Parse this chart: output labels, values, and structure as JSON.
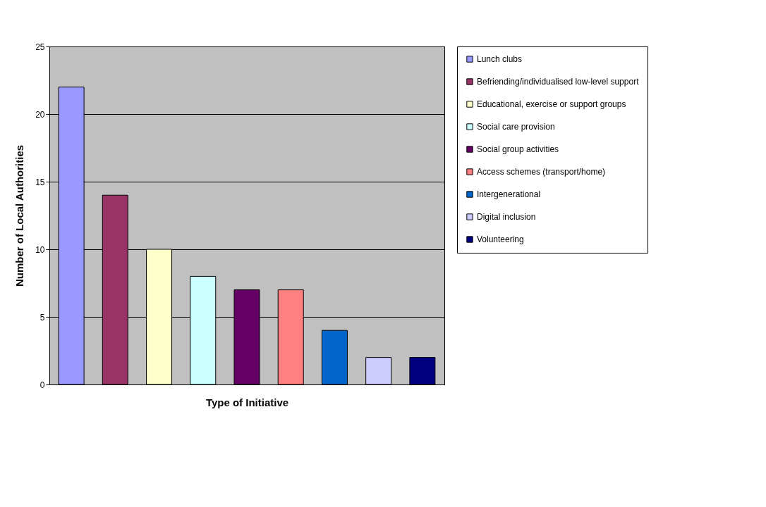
{
  "chart_data": {
    "type": "bar",
    "xlabel": "Type of Initiative",
    "ylabel": "Number of Local Authorities",
    "categories": [
      null,
      null,
      null,
      null,
      null,
      null,
      null,
      null,
      null
    ],
    "series": [
      {
        "name": "Lunch clubs",
        "color": "#9999ff",
        "values": [
          22,
          null,
          null,
          null,
          null,
          null,
          null,
          null,
          null
        ]
      },
      {
        "name": "Befriending/individualised low-level support",
        "color": "#993366",
        "values": [
          null,
          14,
          null,
          null,
          null,
          null,
          null,
          null,
          null
        ]
      },
      {
        "name": "Educational, exercise or support groups",
        "color": "#ffffcc",
        "values": [
          null,
          null,
          10,
          null,
          null,
          null,
          null,
          null,
          null
        ]
      },
      {
        "name": "Social care provision",
        "color": "#ccffff",
        "values": [
          null,
          null,
          null,
          8,
          null,
          null,
          null,
          null,
          null
        ]
      },
      {
        "name": "Social group activities",
        "color": "#660066",
        "values": [
          null,
          null,
          null,
          null,
          7,
          null,
          null,
          null,
          null
        ]
      },
      {
        "name": "Access schemes (transport/home)",
        "color": "#ff8080",
        "values": [
          null,
          null,
          null,
          null,
          null,
          7,
          null,
          null,
          null
        ]
      },
      {
        "name": "Intergenerational",
        "color": "#0066cc",
        "values": [
          null,
          null,
          null,
          null,
          null,
          null,
          4,
          null,
          null
        ]
      },
      {
        "name": "Digital inclusion",
        "color": "#ccccff",
        "values": [
          null,
          null,
          null,
          null,
          null,
          null,
          null,
          2,
          null
        ]
      },
      {
        "name": "Volunteering",
        "color": "#000080",
        "values": [
          null,
          null,
          null,
          null,
          null,
          null,
          null,
          null,
          2
        ]
      }
    ],
    "ylim": [
      0,
      25
    ],
    "yticks": [
      0,
      5,
      10,
      15,
      20,
      25
    ],
    "grid": "y",
    "legend": "right",
    "tick_labels": "y"
  }
}
